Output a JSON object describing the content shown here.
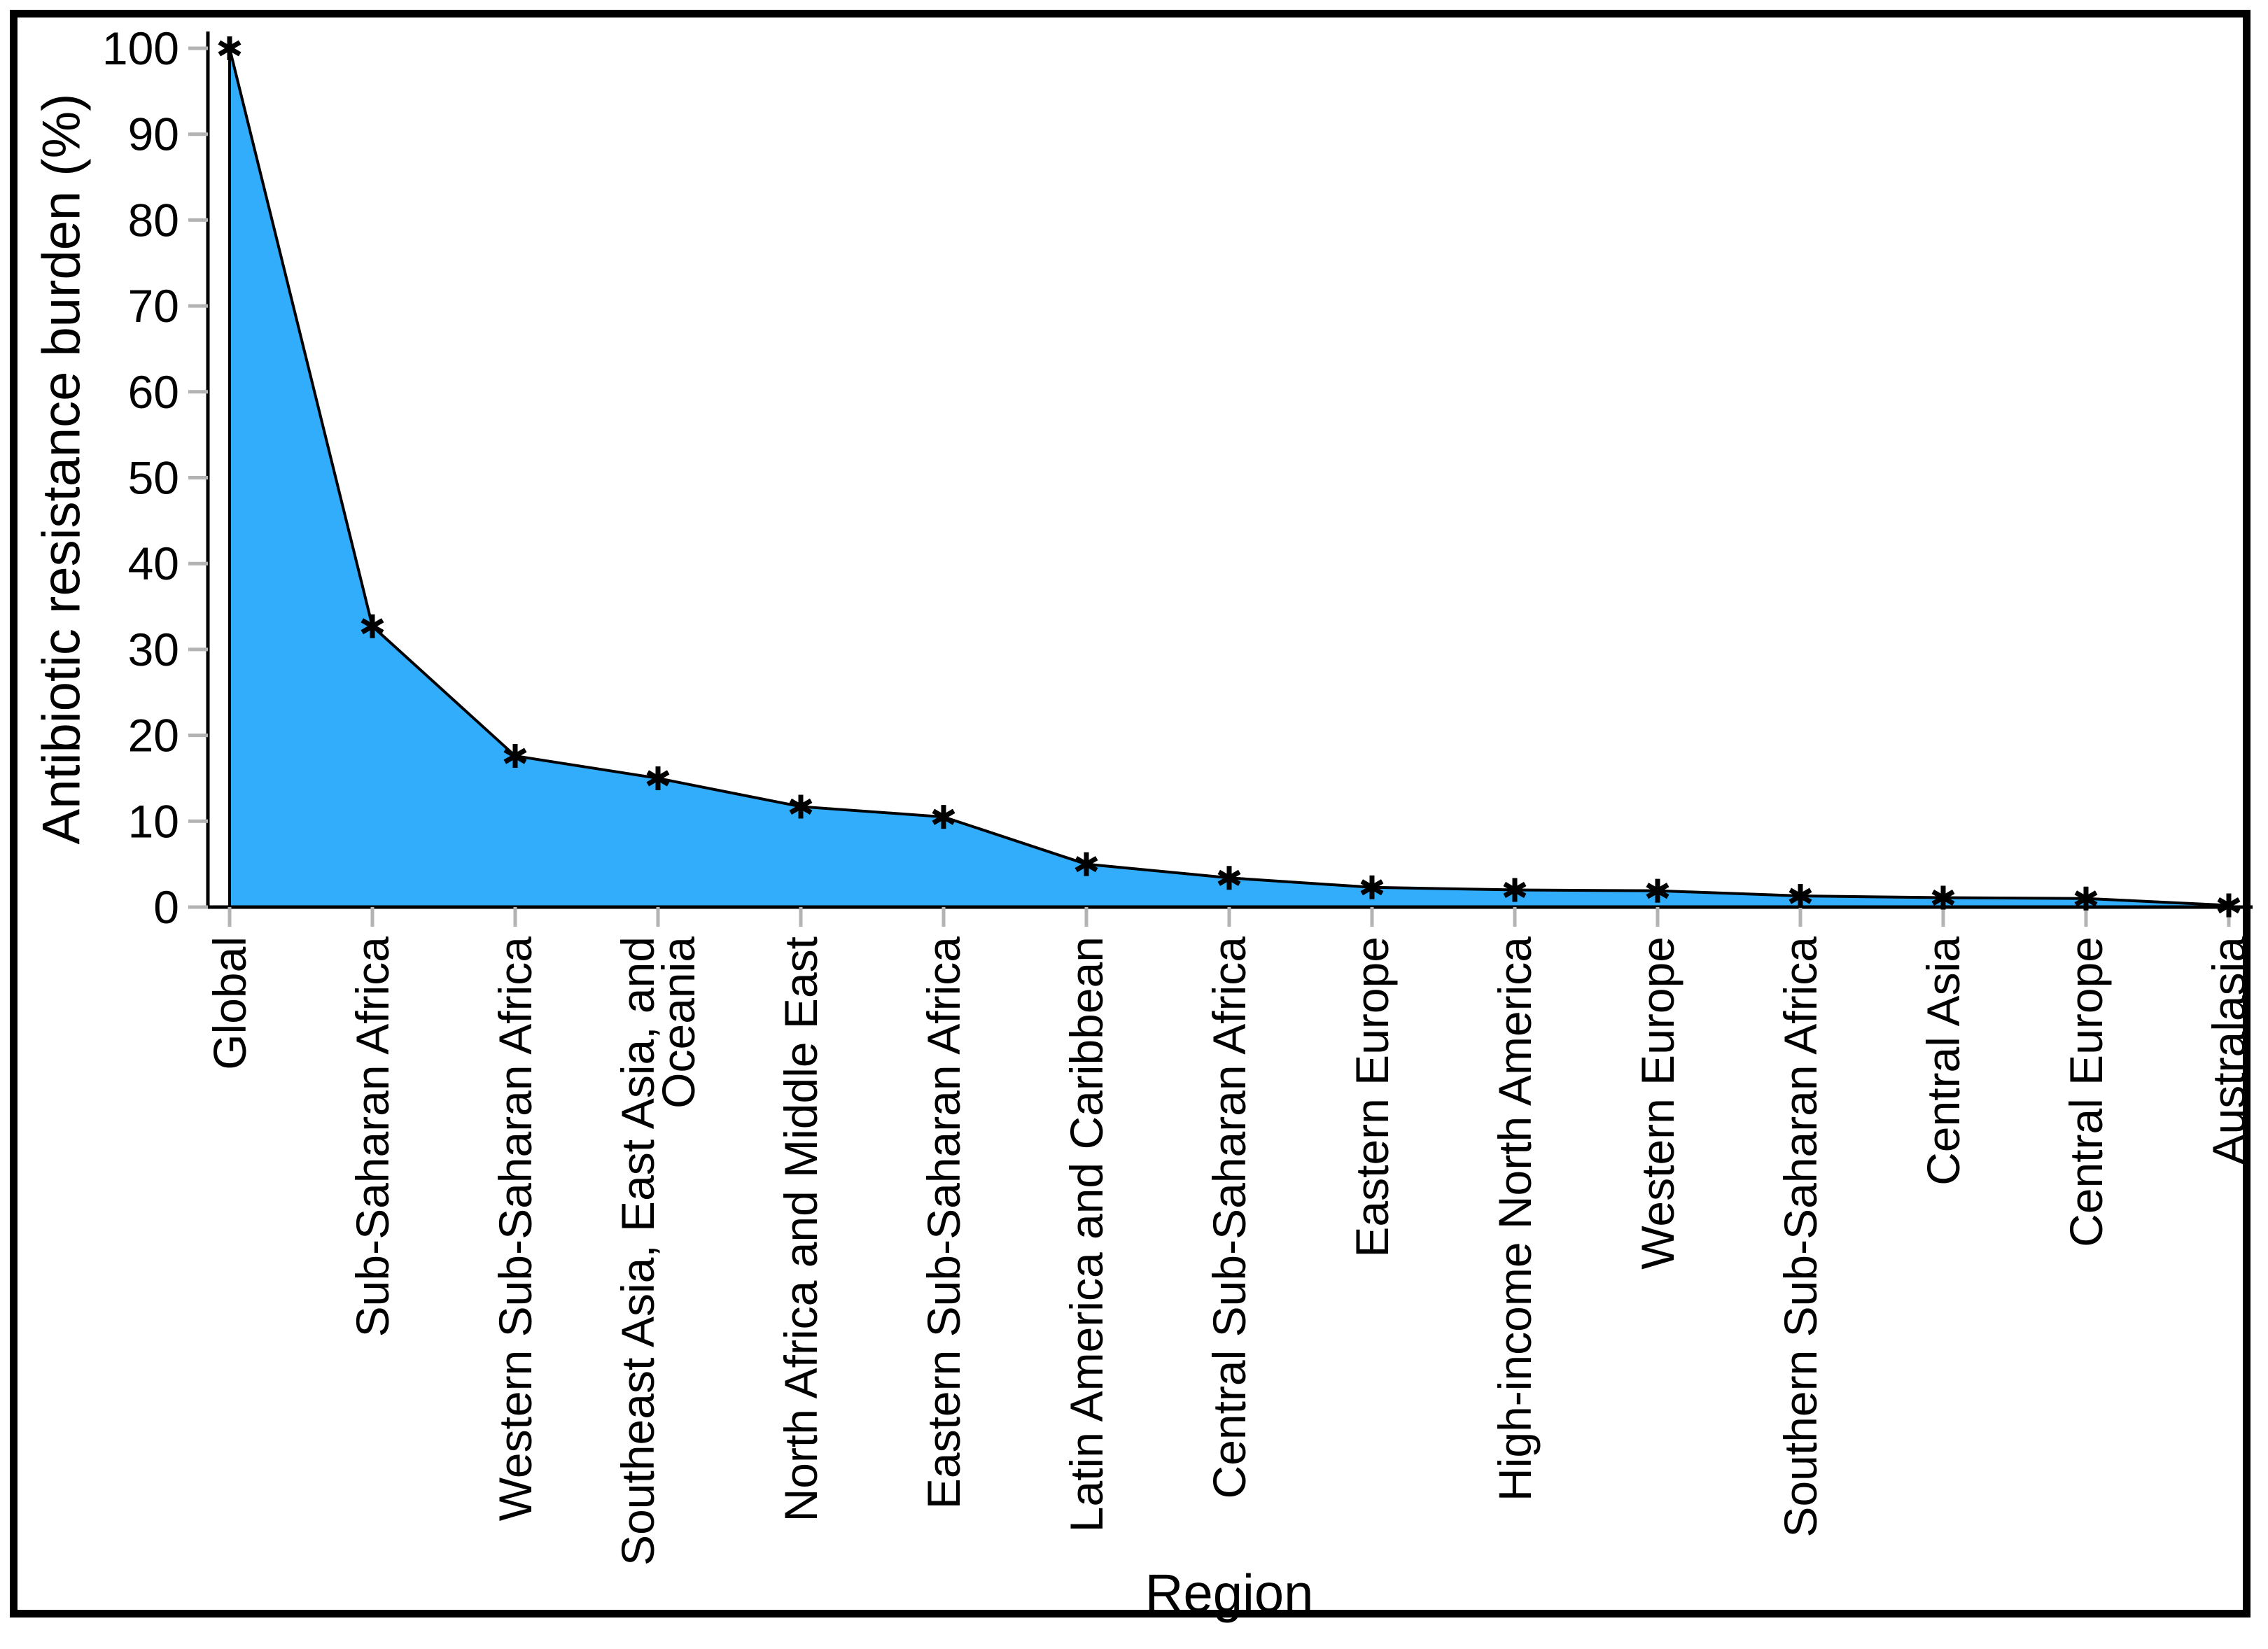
{
  "chart_data": {
    "type": "area",
    "title": "",
    "xlabel": "Region",
    "ylabel": "Antibiotic resistance burden (%)",
    "ylim": [
      0,
      100
    ],
    "yticks": [
      0,
      10,
      20,
      30,
      40,
      50,
      60,
      70,
      80,
      90,
      100
    ],
    "grid": "off",
    "legend": "none",
    "marker": "asterisk",
    "categories": [
      "Global",
      "Sub-Saharan Africa",
      "Western Sub-Saharan Africa",
      "Southeast Asia, East Asia, and\nOceania",
      "North Africa and Middle East",
      "Eastern Sub-Saharan Africa",
      "Latin America and Caribbean",
      "Central Sub-Saharan Africa",
      "Eastern Europe",
      "High-income North America",
      "Western Europe",
      "Southern Sub-Saharan Africa",
      "Central Asia",
      "Central Europe",
      "Australasia"
    ],
    "values": [
      100,
      32.7,
      17.6,
      15.0,
      11.7,
      10.5,
      5.0,
      3.4,
      2.3,
      2.0,
      1.9,
      1.3,
      1.1,
      1.0,
      0.2
    ],
    "colors": {
      "area_fill": "#32ADFC",
      "line": "#000000",
      "marker": "#000000",
      "axis": "#000000",
      "tick": "#B3B3B3",
      "border": "#000000",
      "background": "#FFFFFF"
    }
  }
}
